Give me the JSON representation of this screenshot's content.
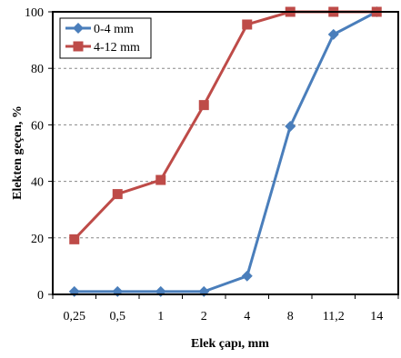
{
  "chart_data": {
    "type": "line",
    "title": "",
    "xlabel": "Elek çapı, mm",
    "ylabel": "Elekten geçen, %",
    "categories": [
      "0,25",
      "0,5",
      "1",
      "2",
      "4",
      "8",
      "11,2",
      "14"
    ],
    "ylim": [
      0,
      100
    ],
    "yticks": [
      0,
      20,
      40,
      60,
      80,
      100
    ],
    "grid": "horizontal dashed",
    "legend_position": "top-left",
    "series": [
      {
        "name": "0-4 mm",
        "color": "#4a7ebb",
        "marker": "diamond",
        "values": [
          1,
          1,
          1,
          1,
          6.5,
          59.5,
          92,
          100
        ]
      },
      {
        "name": "4-12 mm",
        "color": "#be4b48",
        "marker": "square",
        "values": [
          19.5,
          35.5,
          40.5,
          67,
          95.5,
          100,
          100,
          100
        ]
      }
    ]
  }
}
